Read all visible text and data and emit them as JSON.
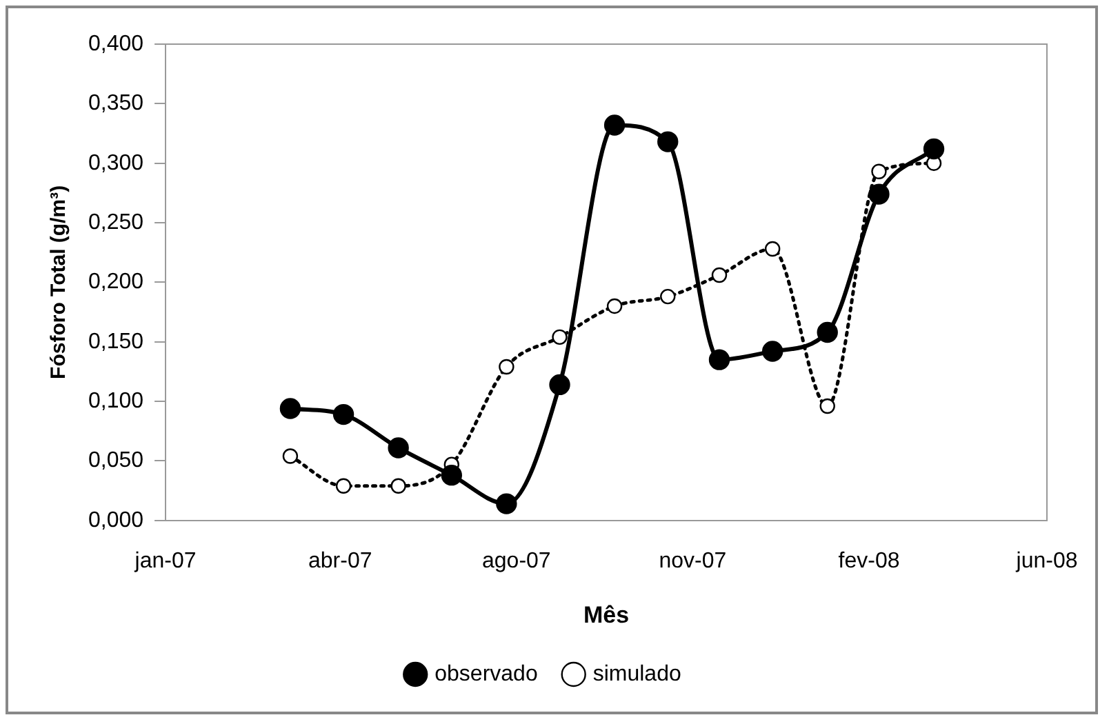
{
  "chart_data": {
    "type": "line",
    "xlabel": "Mês",
    "ylabel": "Fósforo Total (g/m³)",
    "x": [
      "2007-03-17",
      "2007-04-18",
      "2007-05-21",
      "2007-06-22",
      "2007-07-25",
      "2007-08-26",
      "2007-09-28",
      "2007-10-30",
      "2007-11-30",
      "2008-01-01",
      "2008-02-03",
      "2008-03-05",
      "2008-04-07"
    ],
    "series": [
      {
        "name": "observado",
        "color": "#000000",
        "line_style": "solid",
        "values": [
          0.094,
          0.089,
          0.061,
          0.038,
          0.014,
          0.114,
          0.332,
          0.318,
          0.135,
          0.142,
          0.158,
          0.274,
          0.312
        ]
      },
      {
        "name": "simulado",
        "color": "#000000",
        "line_style": "dotted",
        "values": [
          0.054,
          0.029,
          0.029,
          0.047,
          0.129,
          0.154,
          0.18,
          0.188,
          0.206,
          0.228,
          0.096,
          0.293,
          0.3
        ]
      }
    ],
    "marker": "circle",
    "xlim": [
      "2007-01-01",
      "2008-06-14"
    ],
    "xticks": [
      {
        "value": "2007-01-01",
        "label": "jan-07"
      },
      {
        "value": "2007-04-16",
        "label": "abr-07"
      },
      {
        "value": "2007-07-31",
        "label": "ago-07"
      },
      {
        "value": "2007-11-14",
        "label": "nov-07"
      },
      {
        "value": "2008-02-28",
        "label": "fev-08"
      },
      {
        "value": "2008-06-14",
        "label": "jun-08"
      }
    ],
    "ylim": [
      0,
      0.4
    ],
    "yticks": [
      {
        "value": 0,
        "label": "0,000"
      },
      {
        "value": 0.05,
        "label": "0,050"
      },
      {
        "value": 0.1,
        "label": "0,100"
      },
      {
        "value": 0.15,
        "label": "0,150"
      },
      {
        "value": 0.2,
        "label": "0,200"
      },
      {
        "value": 0.25,
        "label": "0,250"
      },
      {
        "value": 0.3,
        "label": "0,300"
      },
      {
        "value": 0.35,
        "label": "0,350"
      },
      {
        "value": 0.4,
        "label": "0,400"
      }
    ],
    "grid": false,
    "legend": "bottom"
  }
}
